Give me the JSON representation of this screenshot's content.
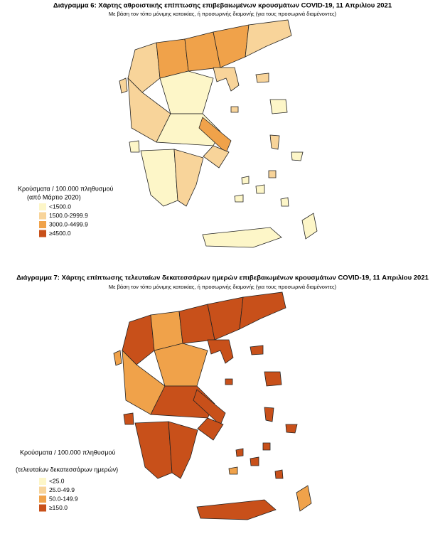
{
  "figures": [
    {
      "title": "Διάγραμμα 6: Χάρτης αθροιστικής επίπτωσης επιβεβαιωμένων κρουσμάτων COVID-19, 11 Απριλίου 2021",
      "subtitle": "Με βάση τον τόπο μόνιμης κατοικίας, ή προσωρινής διαμονής (για τους προσωρινά διαμένοντες)",
      "legend": {
        "title": [
          "Κρούσματα / 100.000 πληθυσμού",
          "(από Μάρτιο 2020)"
        ],
        "items": [
          {
            "label": "<1500.0",
            "color": "#fdf6c8"
          },
          {
            "label": "1500.0-2999.9",
            "color": "#f8d49a"
          },
          {
            "label": "3000.0-4499.9",
            "color": "#f0a24a"
          },
          {
            "label": "≥4500.0",
            "color": "#c8501a"
          }
        ]
      }
    },
    {
      "title": "Διάγραμμα 7: Χάρτης επίπτωσης τελευταίων δεκατεσσάρων ημερών επιβεβαιωμένων κρουσμάτων COVID-19, 11 Απριλίου 2021",
      "subtitle": "Με βάση τον τόπο μόνιμης κατοικίας, ή προσωρινής διαμονής (για τους προσωρινά διαμένοντες)",
      "legend": {
        "title": [
          "Κρούσματα / 100.000 πληθυσμού",
          "(τελευταίων δεκατεσσάρων ημερών)"
        ],
        "items": [
          {
            "label": "<25.0",
            "color": "#fdf6c8"
          },
          {
            "label": "25.0-49.9",
            "color": "#f8d49a"
          },
          {
            "label": "50.0-149.9",
            "color": "#f0a24a"
          },
          {
            "label": "≥150.0",
            "color": "#c8501a"
          }
        ]
      }
    }
  ]
}
